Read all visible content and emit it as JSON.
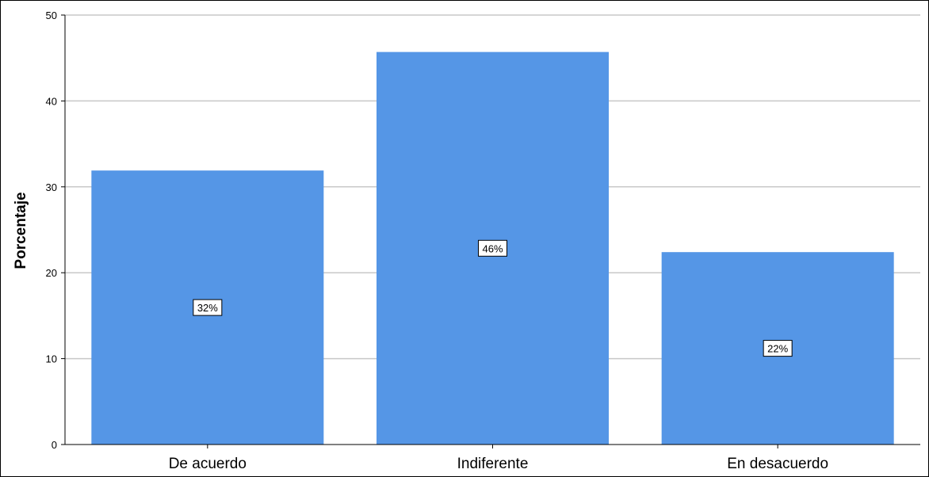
{
  "chart_data": {
    "type": "bar",
    "categories": [
      "De acuerdo",
      "Indiferente",
      "En desacuerdo"
    ],
    "values": [
      31.9,
      45.7,
      22.4
    ],
    "data_labels": [
      "32%",
      "46%",
      "22%"
    ],
    "title": "",
    "xlabel": "",
    "ylabel": "Porcentaje",
    "ylim": [
      0,
      50
    ],
    "yticks": [
      0,
      10,
      20,
      30,
      40,
      50
    ],
    "grid": true,
    "legend": "none",
    "bar_color": "#5596e6",
    "grid_color": "#c8c8c8",
    "axis_color": "#000000"
  }
}
